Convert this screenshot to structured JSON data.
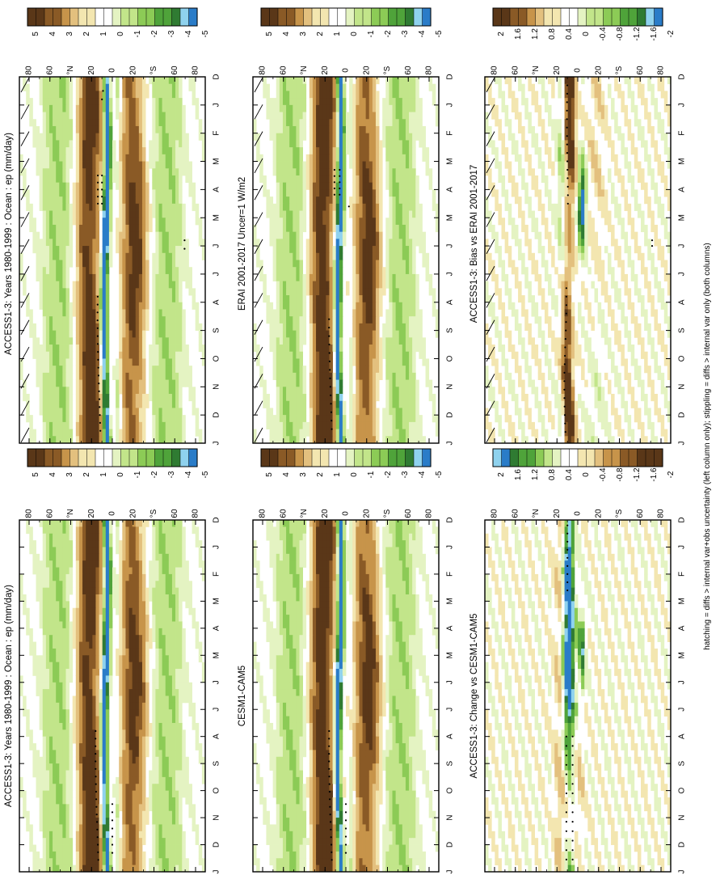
{
  "figure": {
    "footnote": "hatching = diffs > internal var+obs uncertainty (left column only); stippling = diffs > internal var only (both columns)"
  },
  "colors": {
    "brown_dark": "#5a3718",
    "brown": "#8a5a26",
    "tan": "#c7944a",
    "tan_light": "#e3c07e",
    "cream": "#f3e6b0",
    "white": "#ffffff",
    "green_pale": "#e4f3c2",
    "green_light": "#c2e58a",
    "green": "#8ccb56",
    "green_mid": "#4fa33a",
    "green_dark": "#2f7b32",
    "cyan": "#8fd2ee",
    "blue": "#2a7cc8"
  },
  "chart_data": [
    {
      "type": "heatmap",
      "title": "ACCESS1-3: Years 1980-1999 : Ocean : ep (mm/day)",
      "x": [
        "D",
        "J",
        "F",
        "M",
        "A",
        "M",
        "J",
        "J",
        "A",
        "S",
        "O",
        "N",
        "D",
        "J"
      ],
      "y_ticks": [
        "80",
        "60",
        "°N",
        "20",
        "0",
        "20",
        "°S",
        "60",
        "80"
      ],
      "ylim": [
        -90,
        90
      ],
      "colorbar": [
        "5",
        "4",
        "3",
        "2",
        "1",
        "0",
        "-1",
        "-2",
        "-3",
        "-4",
        "-5"
      ],
      "kind": "field",
      "hatched": true,
      "stipple": "mixed"
    },
    {
      "type": "heatmap",
      "title": "ACCESS1-3: Years 1980-1999 : Ocean : ep (mm/day)",
      "x": [
        "D",
        "J",
        "F",
        "M",
        "A",
        "M",
        "J",
        "J",
        "A",
        "S",
        "O",
        "N",
        "D",
        "J"
      ],
      "y_ticks": [
        "80",
        "60",
        "°N",
        "20",
        "0",
        "20",
        "°S",
        "60",
        "80"
      ],
      "ylim": [
        -90,
        90
      ],
      "colorbar": [
        "5",
        "4",
        "3",
        "2",
        "1",
        "0",
        "-1",
        "-2",
        "-3",
        "-4",
        "-5"
      ],
      "kind": "field",
      "hatched": false,
      "stipple": "late"
    },
    {
      "type": "heatmap",
      "title": "ERAI 2001-2017 Uncer=1 W/m2",
      "x": [
        "D",
        "J",
        "F",
        "M",
        "A",
        "M",
        "J",
        "J",
        "A",
        "S",
        "O",
        "N",
        "D",
        "J"
      ],
      "y_ticks": [
        "80",
        "60",
        "°N",
        "20",
        "0",
        "20",
        "°S",
        "60",
        "80"
      ],
      "ylim": [
        -90,
        90
      ],
      "colorbar": [
        "5",
        "4",
        "3",
        "2",
        "1",
        "0",
        "-1",
        "-2",
        "-3",
        "-4",
        "-5"
      ],
      "kind": "field",
      "hatched": true,
      "stipple": "early"
    },
    {
      "type": "heatmap",
      "title": "CESM1-CAM5",
      "x": [
        "D",
        "J",
        "F",
        "M",
        "A",
        "M",
        "J",
        "J",
        "A",
        "S",
        "O",
        "N",
        "D",
        "J"
      ],
      "y_ticks": [
        "80",
        "60",
        "°N",
        "20",
        "0",
        "20",
        "°S",
        "60",
        "80"
      ],
      "ylim": [
        -90,
        90
      ],
      "colorbar": [
        "5",
        "4",
        "3",
        "2",
        "1",
        "0",
        "-1",
        "-2",
        "-3",
        "-4",
        "-5"
      ],
      "kind": "field",
      "hatched": false,
      "stipple": "late"
    },
    {
      "type": "heatmap",
      "title": "ACCESS1-3: Bias vs ERAI 2001-2017",
      "x": [
        "D",
        "J",
        "F",
        "M",
        "A",
        "M",
        "J",
        "J",
        "A",
        "S",
        "O",
        "N",
        "D",
        "J"
      ],
      "y_ticks": [
        "80",
        "60",
        "°N",
        "20",
        "0",
        "20",
        "°S",
        "60",
        "80"
      ],
      "ylim": [
        -90,
        90
      ],
      "colorbar": [
        "2",
        "1.6",
        "1.2",
        "0.8",
        "0.4",
        "0",
        "-0.4",
        "-0.8",
        "-1.2",
        "-1.6",
        "-2"
      ],
      "kind": "bias",
      "hatched": true,
      "stipple": "bias"
    },
    {
      "type": "heatmap",
      "title": "ACCESS1-3: Change vs CESM1-CAM5",
      "x": [
        "D",
        "J",
        "F",
        "M",
        "A",
        "M",
        "J",
        "J",
        "A",
        "S",
        "O",
        "N",
        "D",
        "J"
      ],
      "y_ticks": [
        "80",
        "60",
        "°N",
        "20",
        "0",
        "20",
        "°S",
        "60",
        "80"
      ],
      "ylim": [
        -90,
        90
      ],
      "colorbar": [
        "2",
        "1.6",
        "1.2",
        "0.8",
        "0.4",
        "0",
        "-0.4",
        "-0.8",
        "-1.2",
        "-1.6",
        "-2"
      ],
      "kind": "change",
      "hatched": false,
      "stipple": "change"
    }
  ]
}
